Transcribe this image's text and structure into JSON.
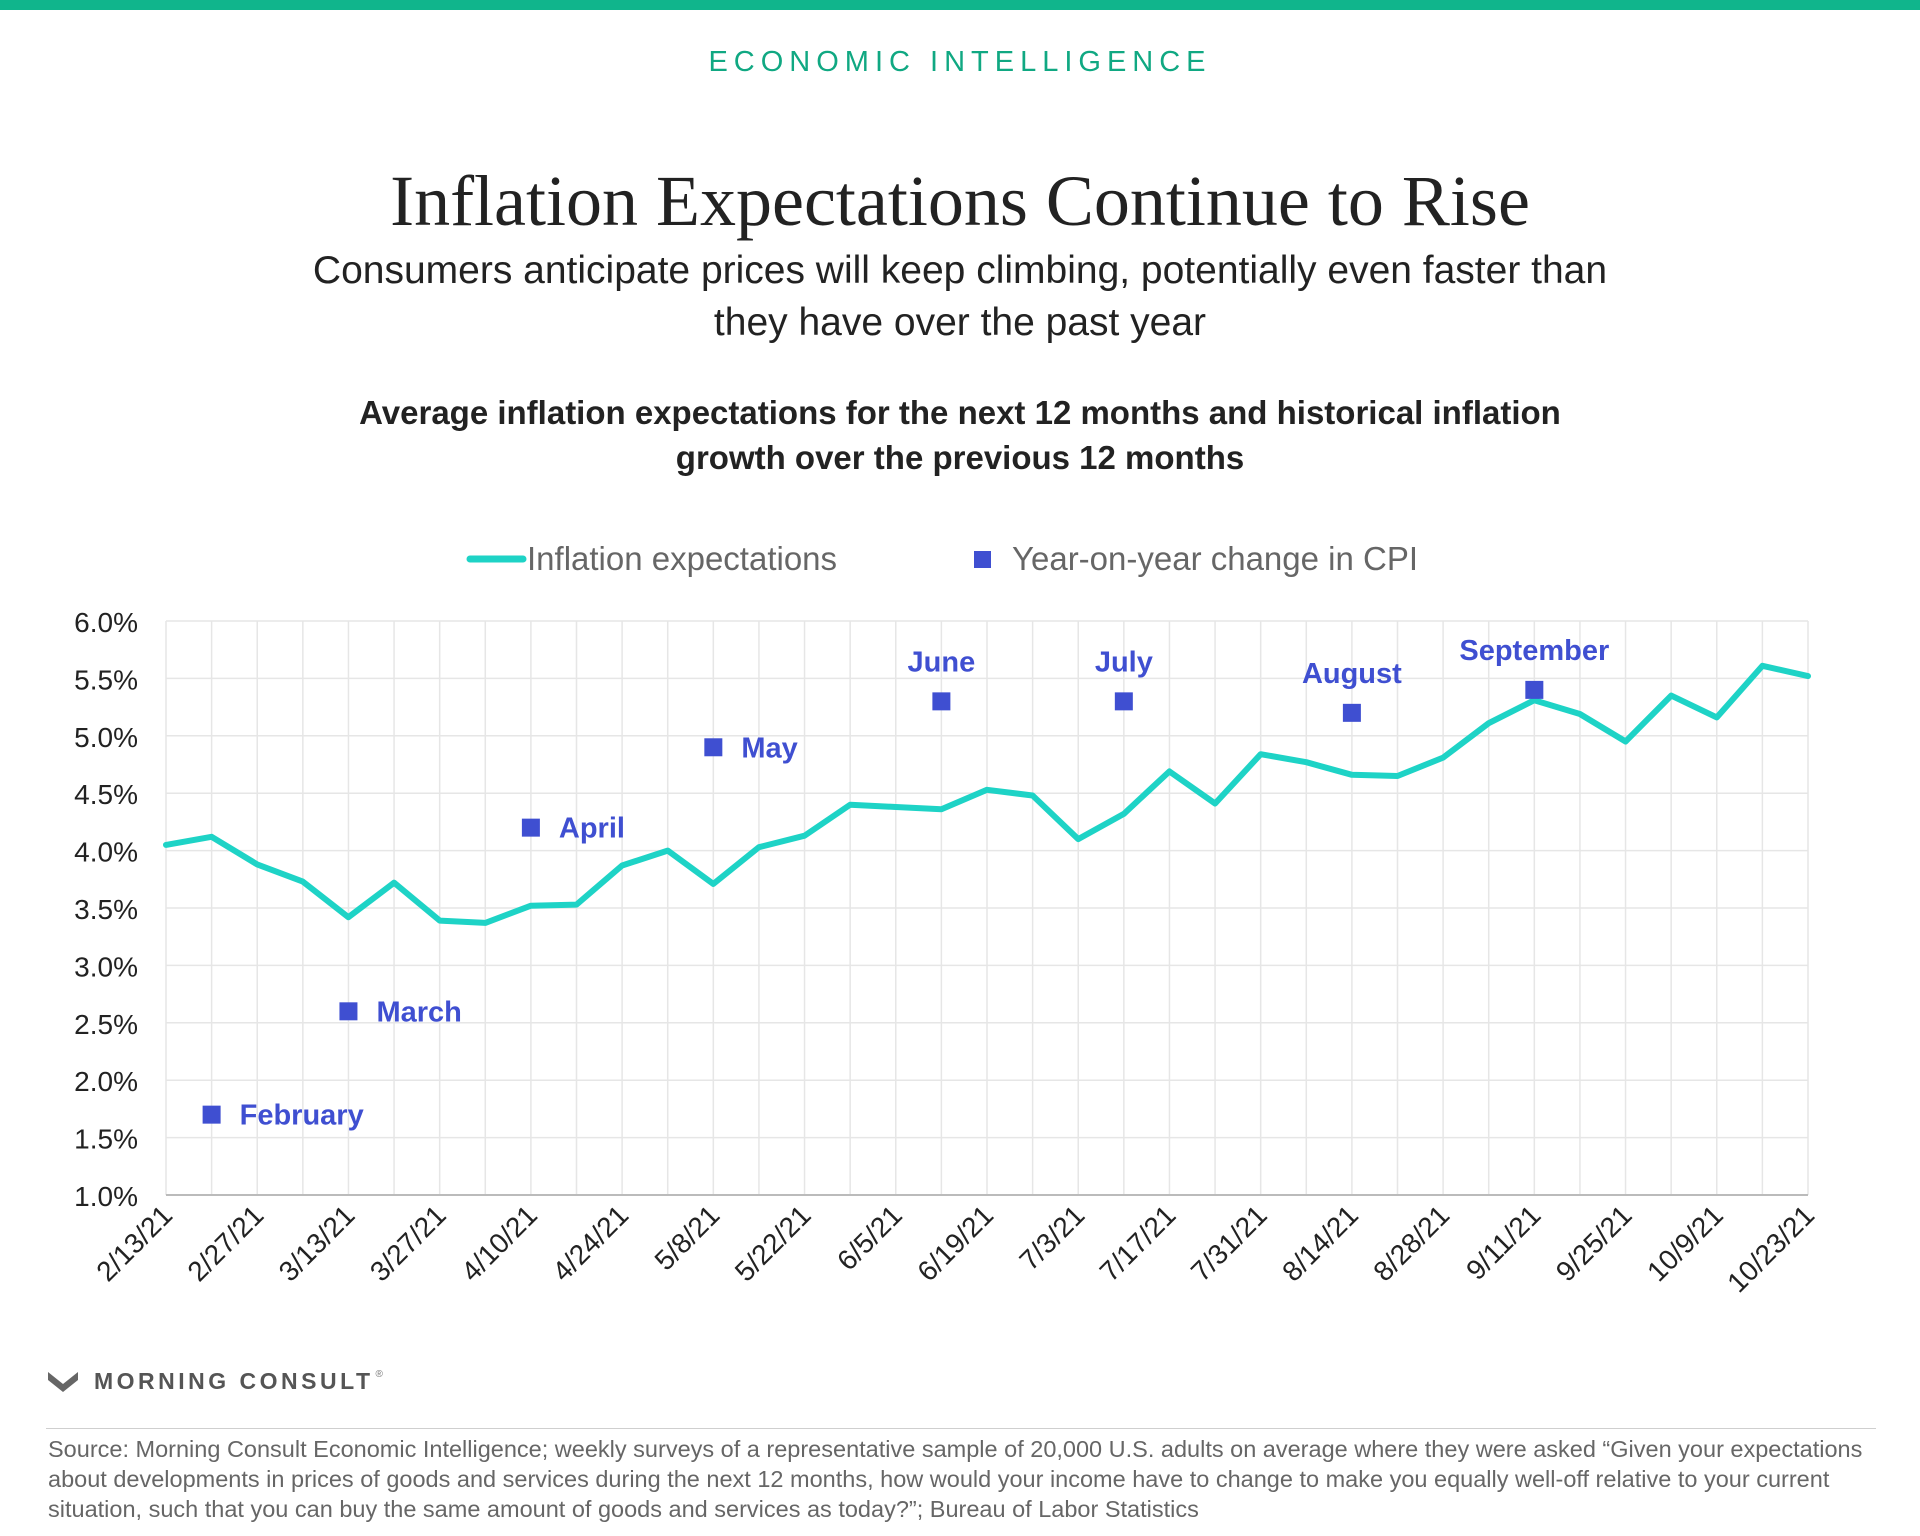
{
  "header": {
    "kicker": "ECONOMIC INTELLIGENCE",
    "title": "Inflation Expectations Continue to Rise",
    "subtitle": "Consumers anticipate prices will keep climbing, potentially even faster than they have over the past year",
    "chart_title": "Average inflation expectations for the next 12 months and historical inflation growth over the previous 12 months"
  },
  "colors": {
    "accent": "#10b58c",
    "line": "#1ed3c6",
    "marker": "#3f4fd1",
    "grid": "#e6e6e6",
    "axis": "#bbbbbb"
  },
  "chart_data": {
    "type": "line",
    "ylim": [
      1.0,
      6.0
    ],
    "y_ticks": [
      "1.0%",
      "1.5%",
      "2.0%",
      "2.5%",
      "3.0%",
      "3.5%",
      "4.0%",
      "4.5%",
      "5.0%",
      "5.5%",
      "6.0%"
    ],
    "y_tick_values": [
      1.0,
      1.5,
      2.0,
      2.5,
      3.0,
      3.5,
      4.0,
      4.5,
      5.0,
      5.5,
      6.0
    ],
    "x_dates": [
      "2/13/21",
      "2/20/21",
      "2/27/21",
      "3/6/21",
      "3/13/21",
      "3/20/21",
      "3/27/21",
      "4/3/21",
      "4/10/21",
      "4/17/21",
      "4/24/21",
      "5/1/21",
      "5/8/21",
      "5/15/21",
      "5/22/21",
      "5/29/21",
      "6/5/21",
      "6/12/21",
      "6/19/21",
      "6/26/21",
      "7/3/21",
      "7/10/21",
      "7/17/21",
      "7/24/21",
      "7/31/21",
      "8/7/21",
      "8/14/21",
      "8/21/21",
      "8/28/21",
      "9/4/21",
      "9/11/21",
      "9/18/21",
      "9/25/21",
      "10/2/21",
      "10/9/21",
      "10/16/21",
      "10/23/21"
    ],
    "x_tick_labels": [
      "2/13/21",
      "2/27/21",
      "3/13/21",
      "3/27/21",
      "4/10/21",
      "4/24/21",
      "5/8/21",
      "5/22/21",
      "6/5/21",
      "6/19/21",
      "7/3/21",
      "7/17/21",
      "7/31/21",
      "8/14/21",
      "8/28/21",
      "9/11/21",
      "9/25/21",
      "10/9/21",
      "10/23/21"
    ],
    "grid": true,
    "legend_position": "top",
    "series": [
      {
        "name": "Inflation expectations",
        "type": "line",
        "values": [
          4.05,
          4.12,
          3.88,
          3.73,
          3.42,
          3.72,
          3.39,
          3.37,
          3.52,
          3.53,
          3.87,
          4.0,
          3.71,
          4.03,
          4.13,
          4.4,
          4.38,
          4.36,
          4.53,
          4.48,
          4.1,
          4.32,
          4.69,
          4.41,
          4.84,
          4.77,
          4.66,
          4.65,
          4.81,
          5.11,
          5.31,
          5.19,
          4.95,
          5.35,
          5.16,
          5.61,
          5.52
        ]
      },
      {
        "name": "Year-on-year change in CPI",
        "type": "scatter",
        "points": [
          {
            "x": "2/20/21",
            "y": 1.7,
            "label": "February"
          },
          {
            "x": "3/13/21",
            "y": 2.6,
            "label": "March"
          },
          {
            "x": "4/10/21",
            "y": 4.2,
            "label": "April"
          },
          {
            "x": "5/8/21",
            "y": 4.9,
            "label": "May"
          },
          {
            "x": "6/12/21",
            "y": 5.3,
            "label": "June"
          },
          {
            "x": "7/10/21",
            "y": 5.3,
            "label": "July"
          },
          {
            "x": "8/14/21",
            "y": 5.2,
            "label": "August"
          },
          {
            "x": "9/11/21",
            "y": 5.4,
            "label": "September"
          }
        ]
      }
    ]
  },
  "brand": {
    "name": "MORNING CONSULT",
    "tm": "®"
  },
  "footer": {
    "source": "Source: Morning Consult Economic Intelligence; weekly surveys of a representative sample of 20,000 U.S. adults on average where they were asked “Given your expectations about developments in prices of goods and services during the next 12 months, how would your income have to change to make you equally well-off relative to your current situation, such that you can buy the same amount of goods and services as today?”; Bureau of Labor Statistics"
  }
}
